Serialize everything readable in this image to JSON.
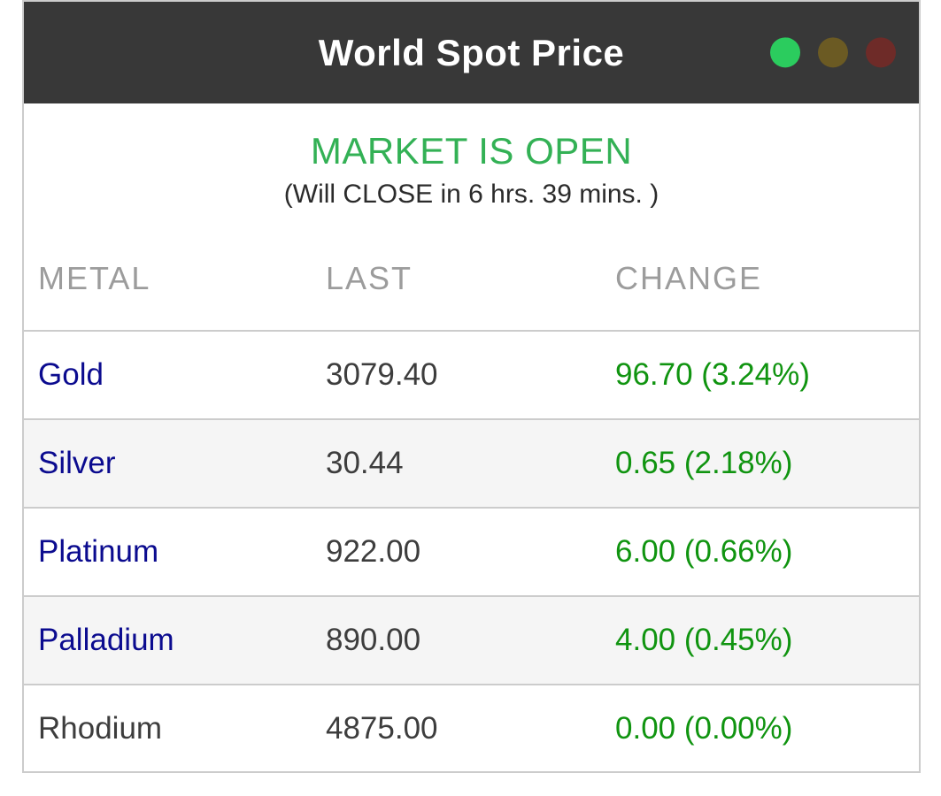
{
  "window": {
    "title": "World Spot Price",
    "lights": [
      {
        "name": "green-light",
        "color": "#2bcc5e"
      },
      {
        "name": "yellow-light",
        "color": "#6b5a23"
      },
      {
        "name": "red-light",
        "color": "#6e2b28"
      }
    ]
  },
  "status": {
    "headline": "MARKET IS OPEN",
    "headline_color": "#33b155",
    "detail": "(Will CLOSE in 6 hrs. 39 mins. )"
  },
  "table": {
    "columns": [
      "METAL",
      "LAST",
      "CHANGE"
    ],
    "change_color": "#109410",
    "rows": [
      {
        "metal": "Gold",
        "last": "3079.40",
        "change": "96.70 (3.24%)",
        "link": true
      },
      {
        "metal": "Silver",
        "last": "30.44",
        "change": "0.65 (2.18%)",
        "link": true
      },
      {
        "metal": "Platinum",
        "last": "922.00",
        "change": "6.00 (0.66%)",
        "link": true
      },
      {
        "metal": "Palladium",
        "last": "890.00",
        "change": "4.00 (0.45%)",
        "link": true
      },
      {
        "metal": "Rhodium",
        "last": "4875.00",
        "change": "0.00 (0.00%)",
        "link": false
      }
    ]
  }
}
